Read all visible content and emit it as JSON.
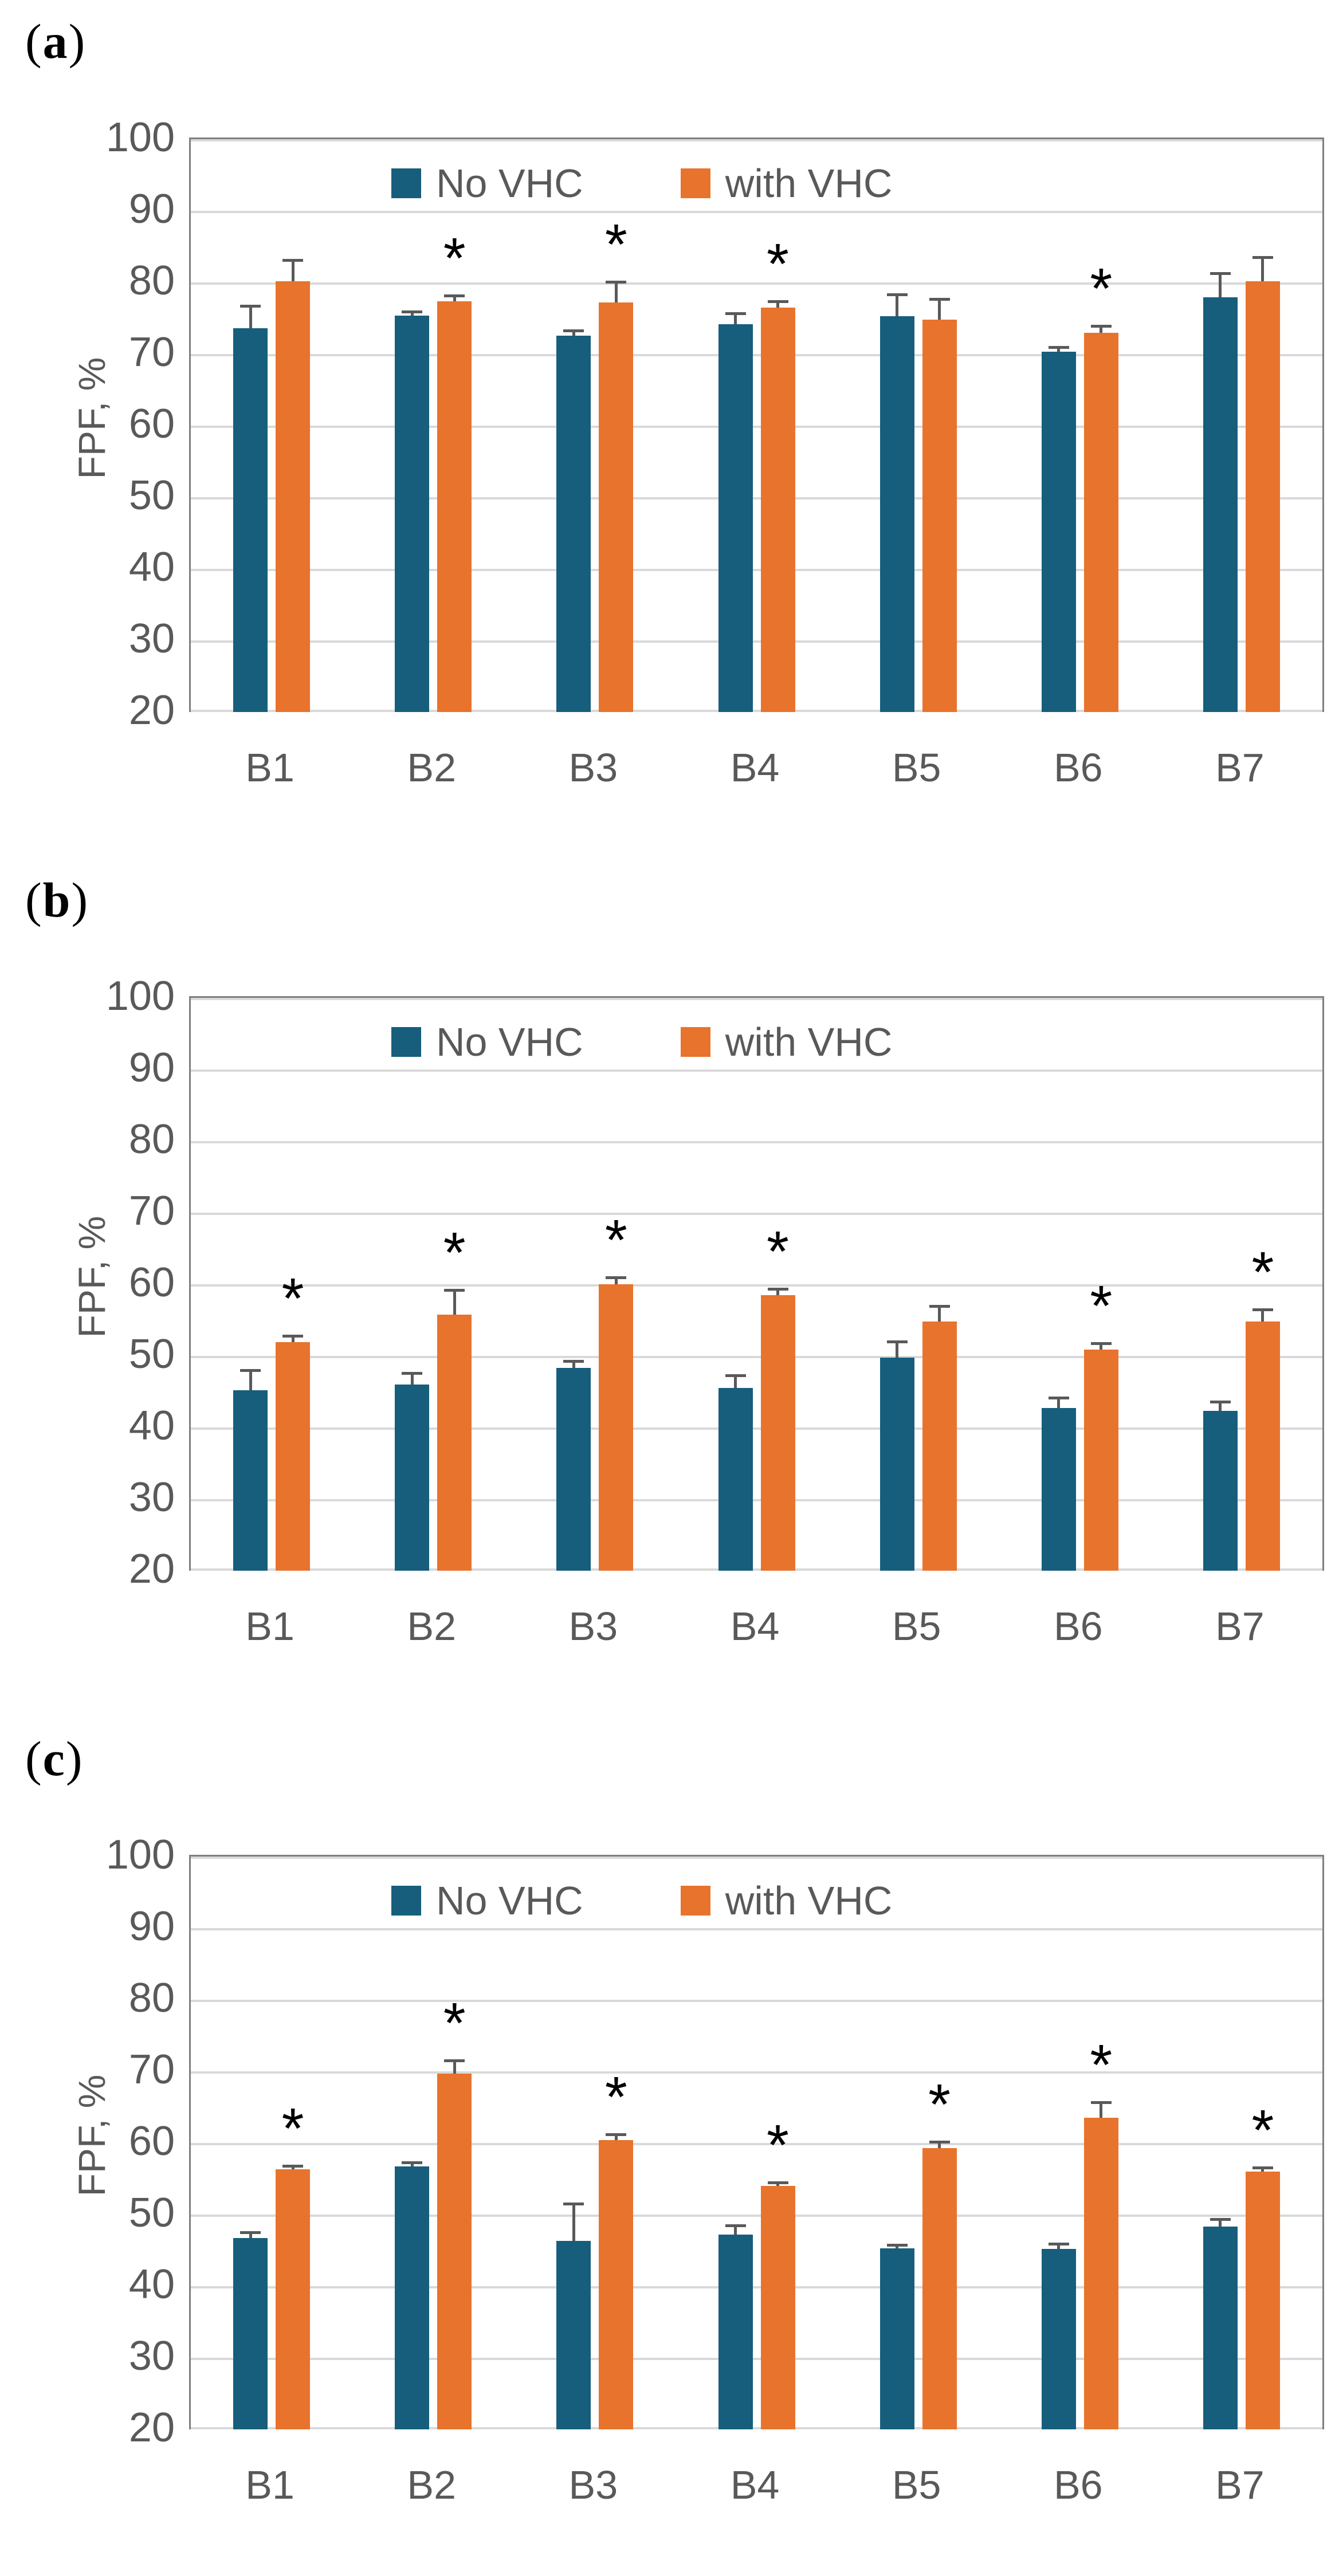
{
  "figure": {
    "sig_marker": "*",
    "colors": {
      "series_no_vhc": "#165E7C",
      "series_with_vhc": "#E8732C",
      "text_gray": "#595959",
      "gridline": "#D9D9D9",
      "plot_border": "#7F7F7F"
    }
  },
  "chart_data": [
    {
      "type": "bar",
      "label_parts": {
        "open": "(",
        "letter": "a",
        "close": ")"
      },
      "title": "",
      "xlabel": "",
      "ylabel": "FPF, %",
      "ylim": [
        20,
        100
      ],
      "yticks": [
        100,
        90,
        80,
        70,
        60,
        50,
        40,
        30,
        20
      ],
      "grid": true,
      "legend_position": "top-inside",
      "categories": [
        "B1",
        "B2",
        "B3",
        "B4",
        "B5",
        "B6",
        "B7"
      ],
      "series": [
        {
          "name": "No VHC",
          "color": "#165E7C",
          "values": [
            73.6,
            75.4,
            72.6,
            74.2,
            75.3,
            70.3,
            77.9
          ],
          "errors": [
            3.1,
            0.5,
            0.7,
            1.5,
            3.0,
            0.7,
            3.4
          ],
          "significant": [
            false,
            false,
            false,
            false,
            false,
            false,
            false
          ]
        },
        {
          "name": "with VHC",
          "color": "#E8732C",
          "values": [
            80.2,
            77.4,
            77.2,
            76.5,
            74.8,
            73.0,
            80.2
          ],
          "errors": [
            2.9,
            0.8,
            2.9,
            0.9,
            2.9,
            0.9,
            3.3
          ],
          "significant": [
            false,
            true,
            true,
            true,
            false,
            true,
            false
          ]
        }
      ]
    },
    {
      "type": "bar",
      "label_parts": {
        "open": "(",
        "letter": "b",
        "close": ")"
      },
      "title": "",
      "xlabel": "",
      "ylabel": "FPF, %",
      "ylim": [
        20,
        100
      ],
      "yticks": [
        100,
        90,
        80,
        70,
        60,
        50,
        40,
        30,
        20
      ],
      "grid": true,
      "legend_position": "top-inside",
      "categories": [
        "B1",
        "B2",
        "B3",
        "B4",
        "B5",
        "B6",
        "B7"
      ],
      "series": [
        {
          "name": "No VHC",
          "color": "#165E7C",
          "values": [
            45.2,
            46.0,
            48.3,
            45.5,
            49.8,
            42.7,
            42.3
          ],
          "errors": [
            2.8,
            1.6,
            1.0,
            1.8,
            2.2,
            1.5,
            1.3
          ],
          "significant": [
            false,
            false,
            false,
            false,
            false,
            false,
            false
          ]
        },
        {
          "name": "with VHC",
          "color": "#E8732C",
          "values": [
            51.9,
            55.8,
            60.0,
            58.5,
            54.8,
            50.9,
            54.8
          ],
          "errors": [
            0.9,
            3.4,
            1.0,
            0.9,
            2.2,
            0.9,
            1.7
          ],
          "significant": [
            true,
            true,
            true,
            true,
            false,
            true,
            true
          ]
        }
      ]
    },
    {
      "type": "bar",
      "label_parts": {
        "open": "(",
        "letter": "c",
        "close": ")"
      },
      "title": "",
      "xlabel": "",
      "ylabel": "FPF, %",
      "ylim": [
        20,
        100
      ],
      "yticks": [
        100,
        90,
        80,
        70,
        60,
        50,
        40,
        30,
        20
      ],
      "grid": true,
      "legend_position": "top-inside",
      "categories": [
        "B1",
        "B2",
        "B3",
        "B4",
        "B5",
        "B6",
        "B7"
      ],
      "series": [
        {
          "name": "No VHC",
          "color": "#165E7C",
          "values": [
            46.7,
            56.7,
            46.3,
            47.2,
            45.3,
            45.2,
            48.3
          ],
          "errors": [
            0.8,
            0.6,
            5.2,
            1.3,
            0.5,
            0.7,
            1.1
          ],
          "significant": [
            false,
            false,
            false,
            false,
            false,
            false,
            false
          ]
        },
        {
          "name": "with VHC",
          "color": "#E8732C",
          "values": [
            56.3,
            69.7,
            60.4,
            54.0,
            59.3,
            63.5,
            56.0
          ],
          "errors": [
            0.5,
            1.8,
            0.8,
            0.5,
            0.9,
            2.2,
            0.6
          ],
          "significant": [
            true,
            true,
            true,
            true,
            true,
            true,
            true
          ]
        }
      ]
    }
  ]
}
